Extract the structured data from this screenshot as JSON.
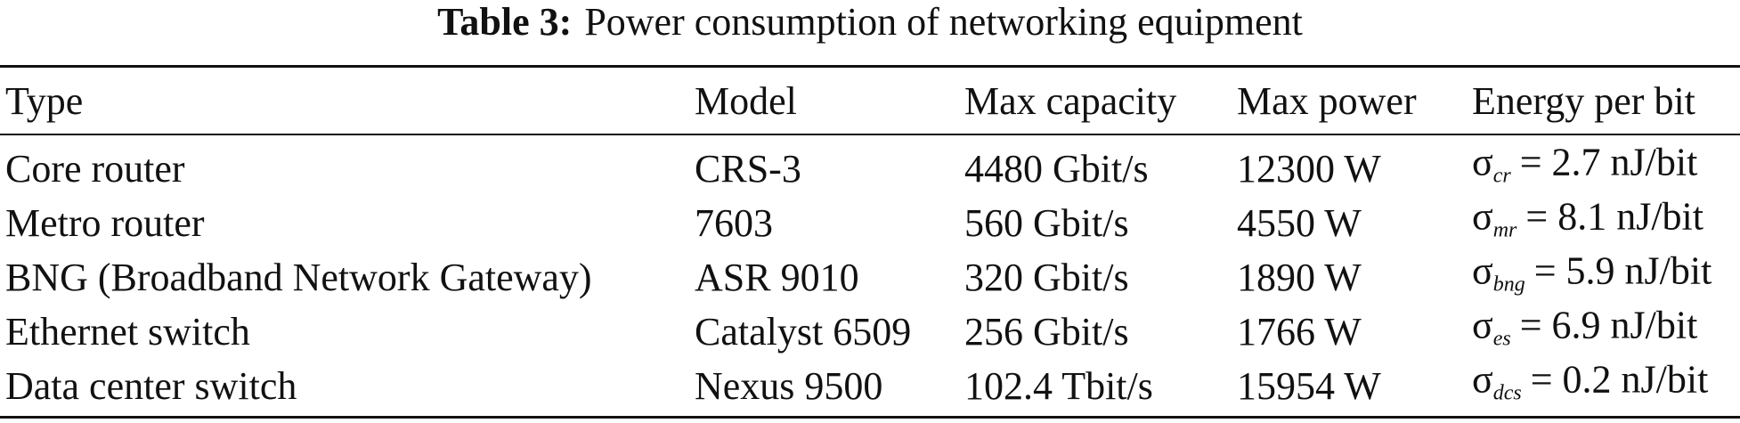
{
  "table": {
    "caption": {
      "label": "Table 3:",
      "text": "Power consumption of networking equipment"
    },
    "header": [
      "Type",
      "Model",
      "Max capacity",
      "Max power",
      "Energy per bit"
    ],
    "rows": [
      [
        "Core router",
        "CRS-3",
        "4480 Gbit/s",
        "12300 W",
        {
          "symbol": "σ",
          "subscript": "cr",
          "text": "= 2.7 nJ/bit"
        }
      ],
      [
        "Metro router",
        "7603",
        "560 Gbit/s",
        "4550 W",
        {
          "symbol": "σ",
          "subscript": "mr",
          "text": "= 8.1 nJ/bit"
        }
      ],
      [
        "BNG (Broadband Network Gateway)",
        "ASR 9010",
        "320 Gbit/s",
        "1890 W",
        {
          "symbol": "σ",
          "subscript": "bng",
          "text": "= 5.9 nJ/bit"
        }
      ],
      [
        "Ethernet switch",
        "Catalyst 6509",
        "256 Gbit/s",
        "1766 W",
        {
          "symbol": "σ",
          "subscript": "es",
          "text": "= 6.9 nJ/bit"
        }
      ],
      [
        "Data center switch",
        "Nexus 9500",
        "102.4 Tbit/s",
        "15954 W",
        {
          "symbol": "σ",
          "subscript": "dcs",
          "text": "= 0.2 nJ/bit"
        }
      ]
    ]
  }
}
